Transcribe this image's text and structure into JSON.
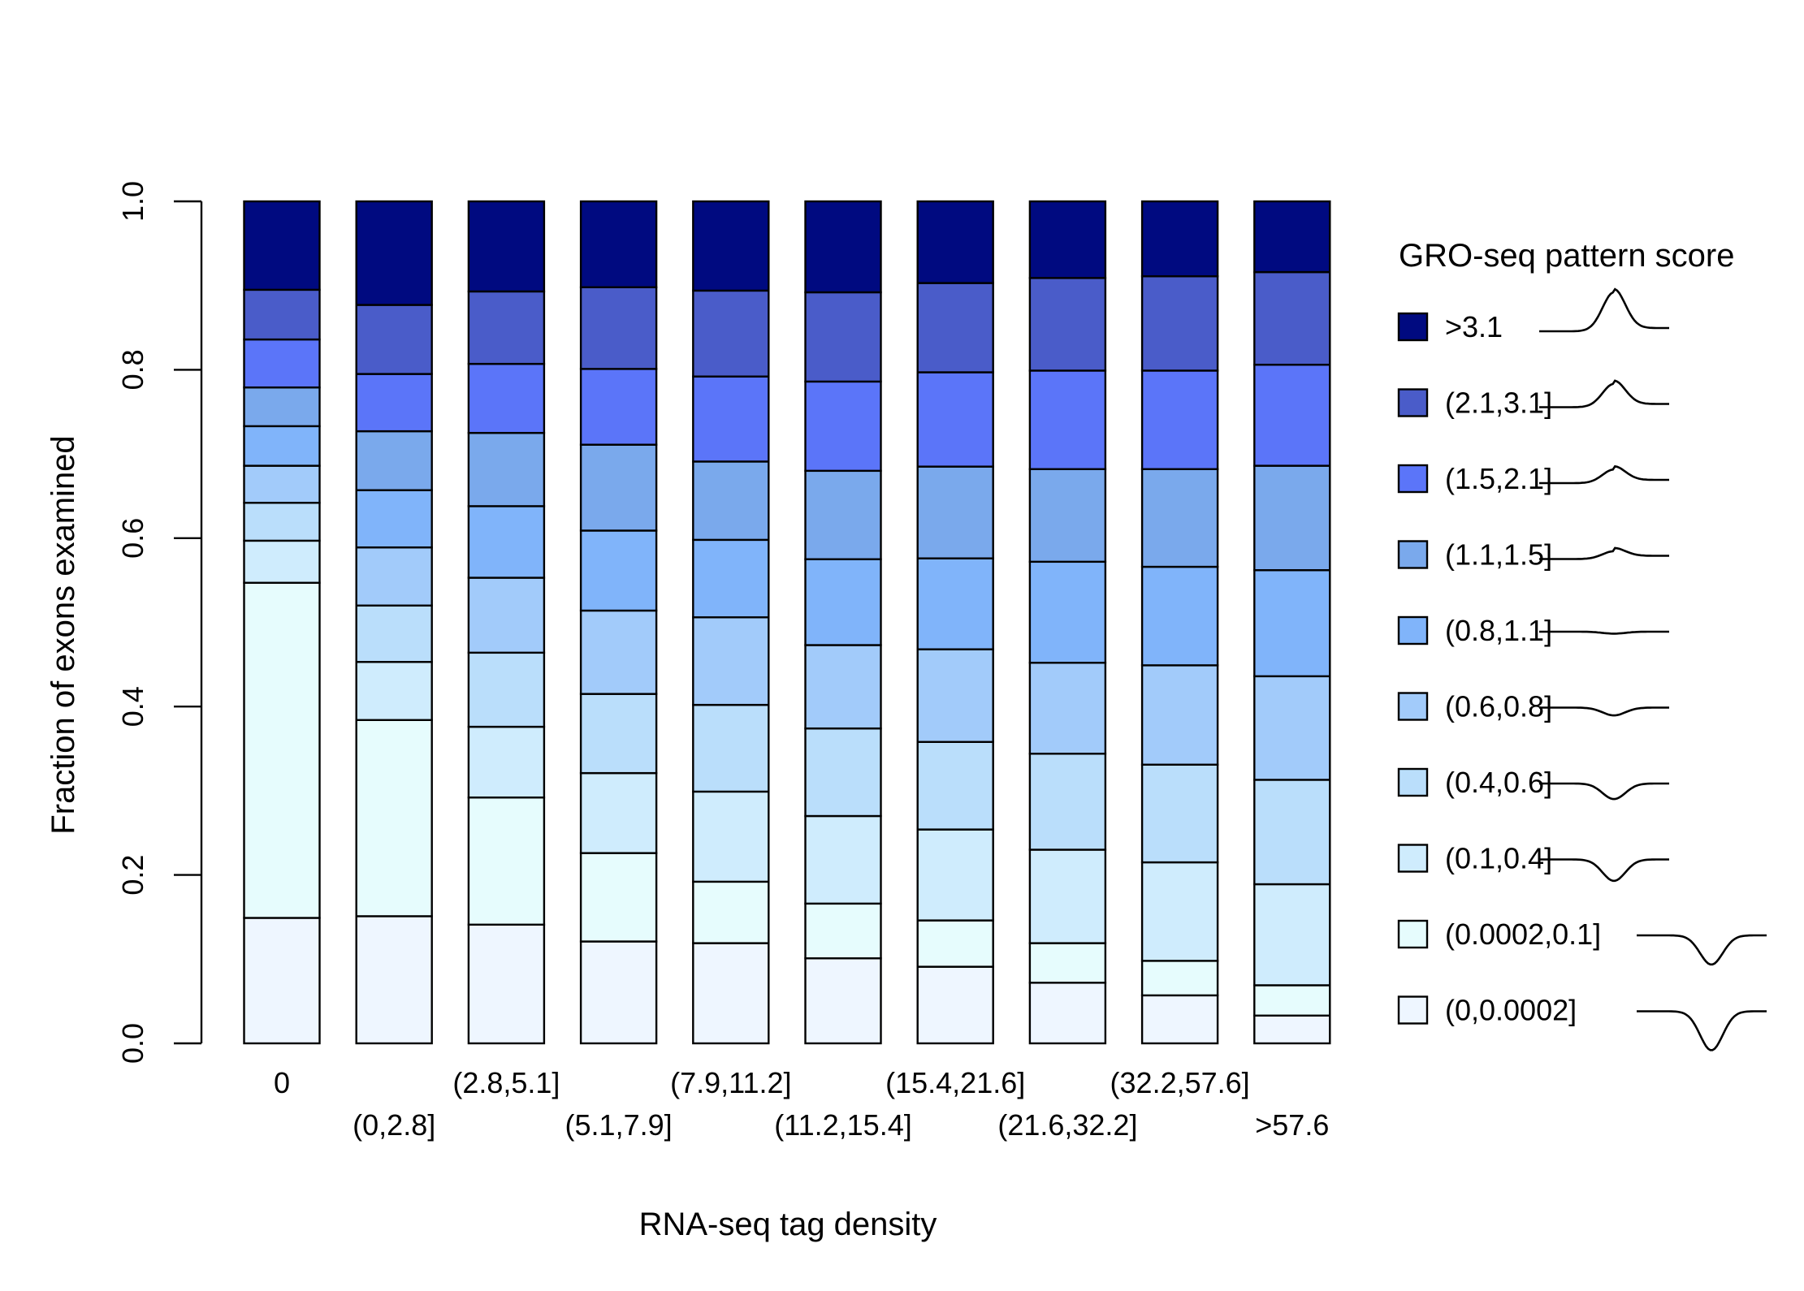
{
  "chart_data": {
    "type": "bar",
    "stacked": true,
    "title": "",
    "xlabel": "RNA-seq tag density",
    "ylabel": "Fraction of exons examined",
    "ylim": [
      0,
      1
    ],
    "yticks": [
      "0.0",
      "0.2",
      "0.4",
      "0.6",
      "0.8",
      "1.0"
    ],
    "categories": [
      "0",
      "(0,2.8]",
      "(2.8,5.1]",
      "(5.1,7.9]",
      "(7.9,11.2]",
      "(11.2,15.4]",
      "(15.4,21.6]",
      "(21.6,32.2]",
      "(32.2,57.6]",
      ">57.6"
    ],
    "legend": {
      "title": "GRO-seq pattern score",
      "position": "right",
      "order": [
        ">3.1",
        "(2.1,3.1]",
        "(1.5,2.1]",
        "(1.1,1.5]",
        "(0.8,1.1]",
        "(0.6,0.8]",
        "(0.4,0.6]",
        "(0.1,0.4]",
        "(0.0002,0.1]",
        "(0,0.0002]"
      ]
    },
    "series": [
      {
        "name": "(0,0.0002]",
        "color": "#eef6ff",
        "peak": -1.0,
        "values": [
          0.149,
          0.151,
          0.141,
          0.121,
          0.119,
          0.101,
          0.091,
          0.072,
          0.057,
          0.033
        ]
      },
      {
        "name": "(0.0002,0.1]",
        "color": "#e6fcfd",
        "peak": -0.75,
        "values": [
          0.398,
          0.233,
          0.151,
          0.105,
          0.073,
          0.065,
          0.055,
          0.047,
          0.041,
          0.036
        ]
      },
      {
        "name": "(0.1,0.4]",
        "color": "#cfecfd",
        "peak": -0.55,
        "values": [
          0.05,
          0.069,
          0.084,
          0.095,
          0.107,
          0.104,
          0.108,
          0.111,
          0.117,
          0.12
        ]
      },
      {
        "name": "(0.4,0.6]",
        "color": "#badefb",
        "peak": -0.4,
        "values": [
          0.045,
          0.067,
          0.088,
          0.094,
          0.103,
          0.104,
          0.104,
          0.114,
          0.116,
          0.124
        ]
      },
      {
        "name": "(0.6,0.8]",
        "color": "#a2cbfa",
        "peak": -0.2,
        "values": [
          0.044,
          0.069,
          0.089,
          0.099,
          0.104,
          0.099,
          0.11,
          0.108,
          0.118,
          0.123
        ]
      },
      {
        "name": "(0.8,1.1]",
        "color": "#80b4fa",
        "peak": -0.05,
        "values": [
          0.047,
          0.068,
          0.085,
          0.095,
          0.092,
          0.102,
          0.108,
          0.12,
          0.117,
          0.126
        ]
      },
      {
        "name": "(1.1,1.5]",
        "color": "#7aa9ec",
        "peak": 0.2,
        "values": [
          0.046,
          0.07,
          0.087,
          0.102,
          0.093,
          0.105,
          0.109,
          0.11,
          0.116,
          0.124
        ]
      },
      {
        "name": "(1.5,2.1]",
        "color": "#5b75f9",
        "peak": 0.35,
        "values": [
          0.057,
          0.068,
          0.082,
          0.09,
          0.101,
          0.106,
          0.112,
          0.117,
          0.117,
          0.12
        ]
      },
      {
        "name": "(2.1,3.1]",
        "color": "#4a5cc9",
        "peak": 0.6,
        "values": [
          0.059,
          0.082,
          0.086,
          0.097,
          0.102,
          0.106,
          0.106,
          0.11,
          0.112,
          0.11
        ]
      },
      {
        "name": ">3.1",
        "color": "#000a80",
        "peak": 1.0,
        "values": [
          0.105,
          0.123,
          0.107,
          0.102,
          0.106,
          0.108,
          0.097,
          0.091,
          0.089,
          0.084
        ]
      }
    ]
  }
}
